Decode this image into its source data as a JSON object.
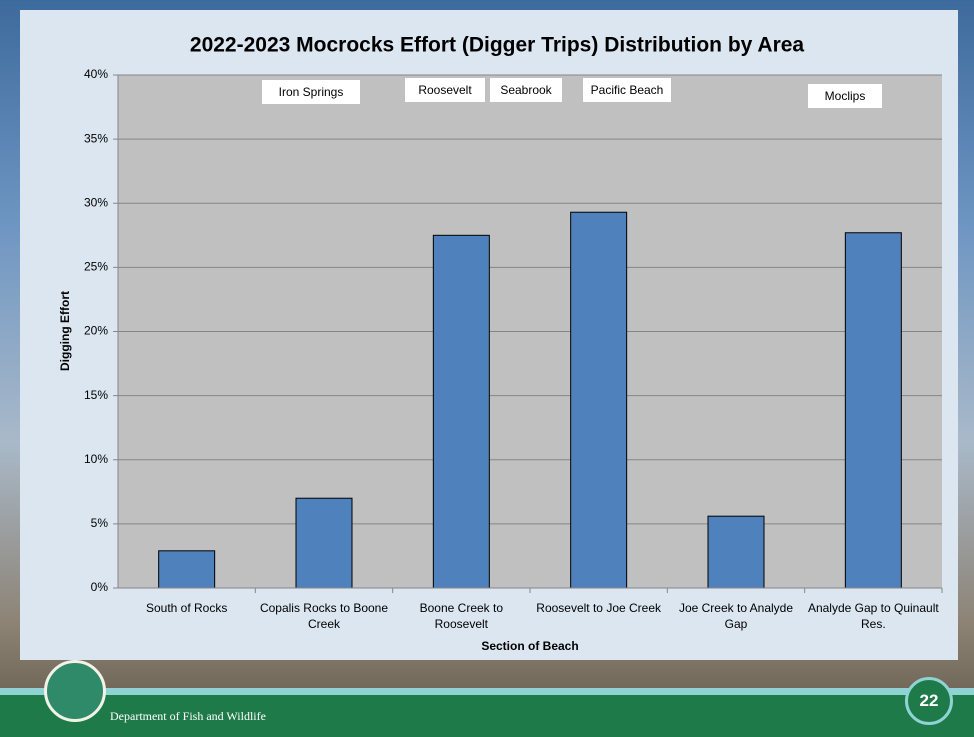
{
  "chart_data": {
    "type": "bar",
    "title": "2022-2023 Mocrocks Effort (Digger Trips) Distribution by Area",
    "y_label": "Digging Effort",
    "x_label": "Section of Beach",
    "categories": [
      "South of Rocks",
      "Copalis Rocks to Boone Creek",
      "Boone Creek to Roosevelt",
      "Roosevelt to Joe Creek",
      "Joe Creek to Analyde Gap",
      "Analyde Gap to Quinault Res."
    ],
    "values": [
      2.9,
      7,
      27.5,
      29.3,
      5.6,
      27.7
    ],
    "color": "#4f81bd",
    "ylim": [
      0,
      40
    ],
    "yticks": [
      {
        "value": 0,
        "label": "0%"
      },
      {
        "value": 5,
        "label": "5%"
      },
      {
        "value": 10,
        "label": "10%"
      },
      {
        "value": 15,
        "label": "15%"
      },
      {
        "value": 20,
        "label": "20%"
      },
      {
        "value": 25,
        "label": "25%"
      },
      {
        "value": 30,
        "label": "30%"
      },
      {
        "value": 35,
        "label": "35%"
      },
      {
        "value": 40,
        "label": "40%"
      }
    ],
    "grid": true,
    "annotations": [
      "Iron Springs",
      "Roosevelt",
      "Seabrook",
      "Pacific Beach",
      "Moclips"
    ]
  },
  "footer": {
    "organization": "Department of Fish and Wildlife",
    "page_number": "22"
  }
}
